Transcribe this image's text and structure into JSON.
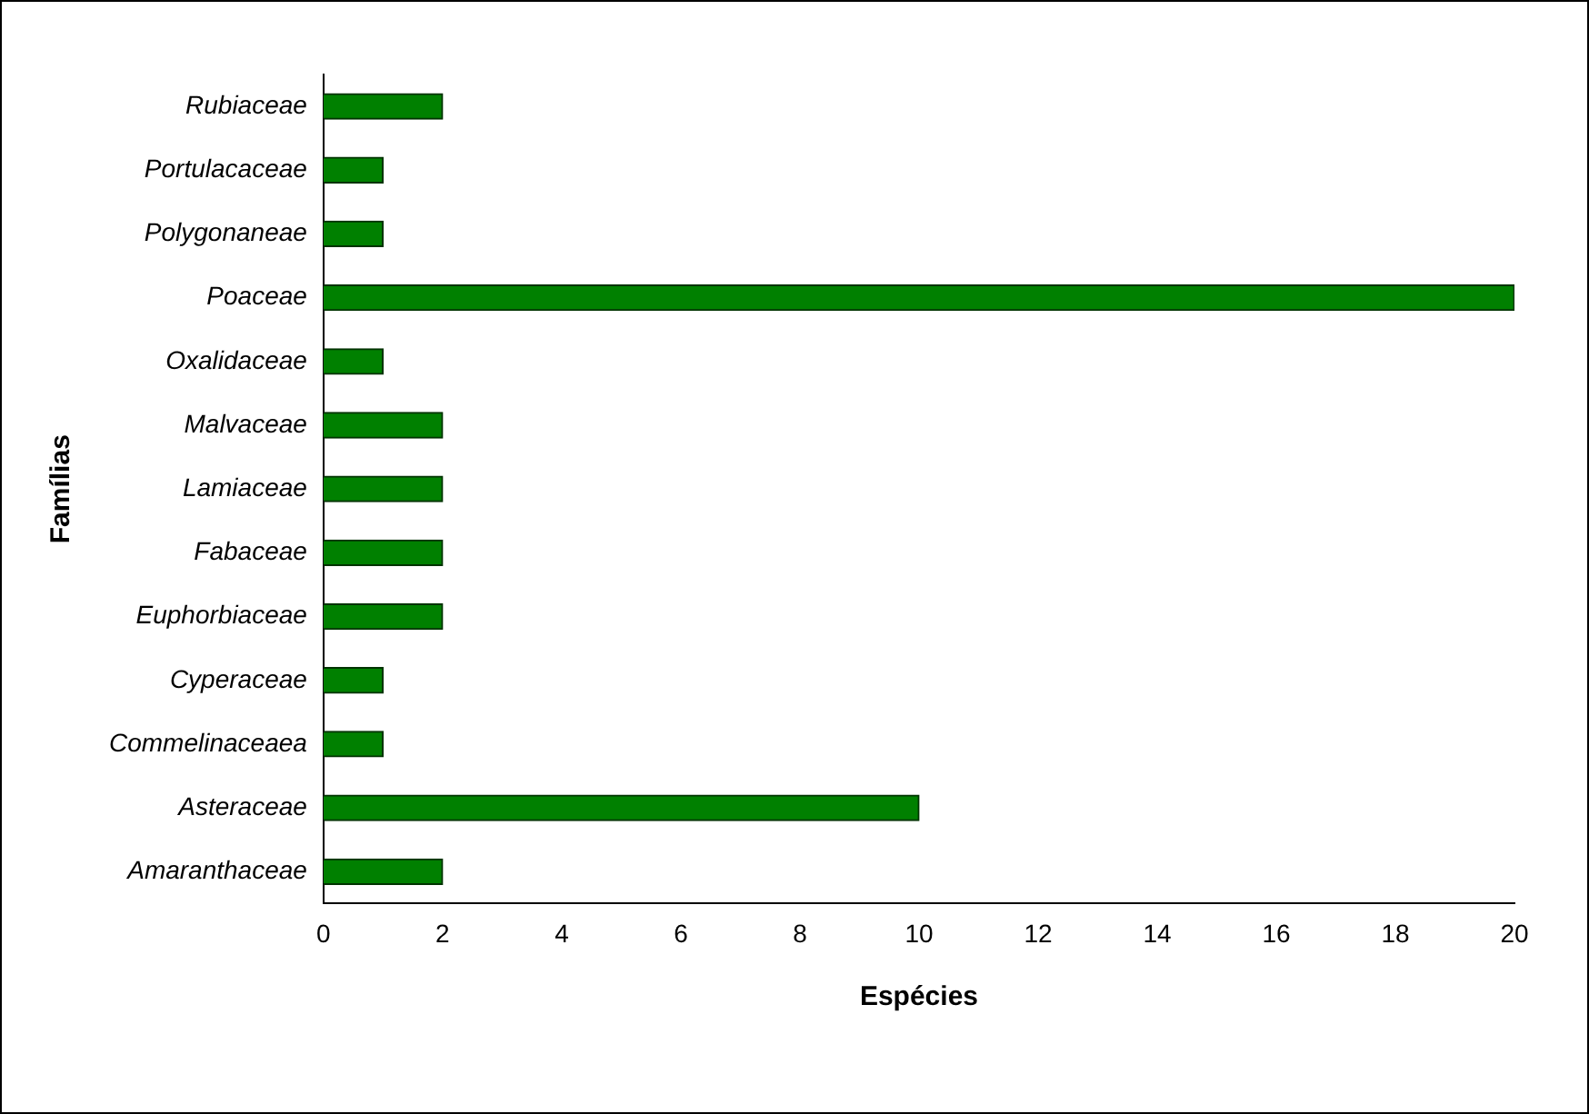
{
  "chart_data": {
    "type": "bar",
    "orientation": "horizontal",
    "xlabel": "Espécies",
    "ylabel": "Famílias",
    "categories": [
      "Rubiaceae",
      "Portulacaceae",
      "Polygonaneae",
      "Poaceae",
      "Oxalidaceae",
      "Malvaceae",
      "Lamiaceae",
      "Fabaceae",
      "Euphorbiaceae",
      "Cyperaceae",
      "Commelinaceaea",
      "Asteraceae",
      "Amaranthaceae"
    ],
    "values": [
      2,
      1,
      1,
      20,
      1,
      2,
      2,
      2,
      2,
      1,
      1,
      10,
      2
    ],
    "color": "#008000",
    "xlim": [
      0,
      20
    ],
    "xticks": [
      0,
      2,
      4,
      6,
      8,
      10,
      12,
      14,
      16,
      18,
      20
    ],
    "grid": false,
    "legend": false
  }
}
